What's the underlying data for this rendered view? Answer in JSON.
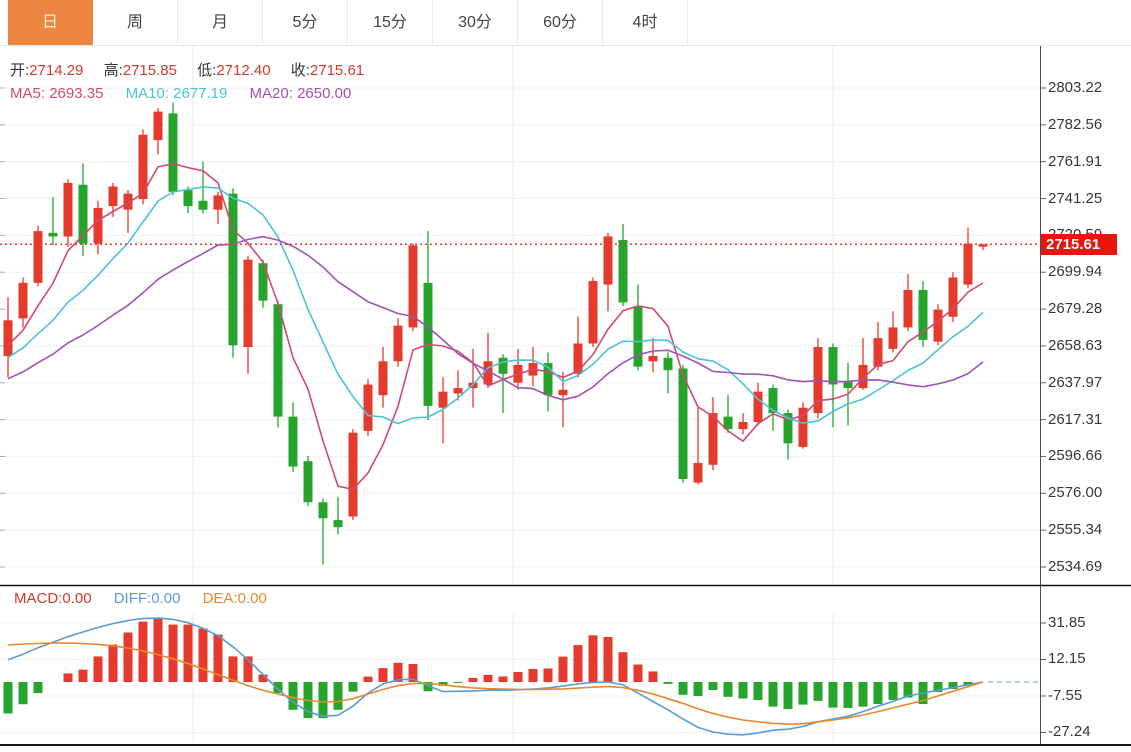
{
  "tabs": {
    "items": [
      {
        "label": "日",
        "active": true
      },
      {
        "label": "周",
        "active": false
      },
      {
        "label": "月",
        "active": false
      },
      {
        "label": "5分",
        "active": false
      },
      {
        "label": "15分",
        "active": false
      },
      {
        "label": "30分",
        "active": false
      },
      {
        "label": "60分",
        "active": false
      },
      {
        "label": "4时",
        "active": false
      }
    ]
  },
  "ohlc": {
    "open_label": "开:",
    "open_value": "2714.29",
    "high_label": "高:",
    "high_value": "2715.85",
    "low_label": "低:",
    "low_value": "2712.40",
    "close_label": "收:",
    "close_value": "2715.61"
  },
  "ma_info": {
    "ma5_label": "MA5:",
    "ma5_value": "2693.35",
    "ma10_label": "MA10:",
    "ma10_value": "2677.19",
    "ma20_label": "MA20:",
    "ma20_value": "2650.00"
  },
  "macd_info": {
    "macd_label": "MACD:",
    "macd_value": "0.00",
    "diff_label": "DIFF:",
    "diff_value": "0.00",
    "dea_label": "DEA:",
    "dea_value": "0.00"
  },
  "current_price_tag": "2715.61",
  "colors": {
    "up": "#e53b2c",
    "down": "#26a42c",
    "ma5": "#d2496f",
    "ma10": "#4cc3d5",
    "ma20": "#9e53b5",
    "diff": "#5b9bd5",
    "dea": "#e78a2e",
    "accent_tab": "#ed8640",
    "tag": "#ea1509",
    "value_red": "#d5382e",
    "axis_text": "#36383d",
    "grid_h": "#eef0f4",
    "grid_v": "#e8ebf1",
    "axis_border": "#4a4e55",
    "separator": "#141414",
    "dotted_line": "#e53b2c",
    "zero_dash": "#8fb0c9"
  },
  "chart_data": {
    "type": "candlestick",
    "title": "",
    "legend": [
      "MA5",
      "MA10",
      "MA20",
      "MACD",
      "DIFF",
      "DEA"
    ],
    "grid": true,
    "price_panel": {
      "y_ticks": [
        2803.22,
        2782.56,
        2761.91,
        2741.25,
        2720.59,
        2699.94,
        2679.28,
        2658.63,
        2637.97,
        2617.31,
        2596.66,
        2576.0,
        2555.34,
        2534.69
      ],
      "y_range": [
        2534.69,
        2803.22
      ],
      "last_close": 2715.61,
      "ma_periods": [
        5,
        10,
        20
      ],
      "ma_last_values": {
        "ma5": 2693.35,
        "ma10": 2677.19,
        "ma20": 2650.0
      },
      "ma_seed_closes": [
        2618,
        2620,
        2623,
        2625,
        2627,
        2629,
        2632,
        2634,
        2636,
        2639,
        2641,
        2643,
        2645,
        2648,
        2650,
        2652,
        2654,
        2657,
        2659
      ],
      "candles_ohlc": [
        [
          2653,
          2686,
          2641,
          2673
        ],
        [
          2674,
          2697,
          2669,
          2694
        ],
        [
          2694,
          2726,
          2692,
          2723
        ],
        [
          2722,
          2742,
          2715,
          2720
        ],
        [
          2720,
          2752,
          2714,
          2750
        ],
        [
          2749,
          2761,
          2709,
          2716
        ],
        [
          2716,
          2740,
          2710,
          2736
        ],
        [
          2737,
          2750,
          2731,
          2748
        ],
        [
          2735,
          2746,
          2722,
          2744
        ],
        [
          2741,
          2780,
          2738,
          2777
        ],
        [
          2774,
          2792,
          2766,
          2790
        ],
        [
          2789,
          2795,
          2743,
          2745
        ],
        [
          2746,
          2748,
          2733,
          2737
        ],
        [
          2740,
          2762,
          2733,
          2735
        ],
        [
          2735,
          2745,
          2727,
          2743
        ],
        [
          2744,
          2747,
          2652,
          2659
        ],
        [
          2658,
          2709,
          2643,
          2707
        ],
        [
          2705,
          2707,
          2680,
          2684
        ],
        [
          2682,
          2684,
          2613,
          2619
        ],
        [
          2619,
          2627,
          2588,
          2591
        ],
        [
          2594,
          2597,
          2569,
          2571
        ],
        [
          2571,
          2573,
          2536,
          2562
        ],
        [
          2561,
          2574,
          2553,
          2557
        ],
        [
          2563,
          2612,
          2561,
          2610
        ],
        [
          2611,
          2640,
          2608,
          2637
        ],
        [
          2631,
          2658,
          2624,
          2650
        ],
        [
          2650,
          2674,
          2647,
          2670
        ],
        [
          2669,
          2716,
          2667,
          2715
        ],
        [
          2694,
          2723,
          2617,
          2625
        ],
        [
          2624,
          2641,
          2604,
          2633
        ],
        [
          2632,
          2645,
          2628,
          2635
        ],
        [
          2635,
          2657,
          2624,
          2638
        ],
        [
          2637,
          2666,
          2635,
          2650
        ],
        [
          2652,
          2654,
          2621,
          2643
        ],
        [
          2638,
          2657,
          2634,
          2648
        ],
        [
          2642,
          2658,
          2636,
          2649
        ],
        [
          2649,
          2655,
          2622,
          2631
        ],
        [
          2631,
          2644,
          2613,
          2634
        ],
        [
          2643,
          2675,
          2641,
          2660
        ],
        [
          2660,
          2697,
          2658,
          2695
        ],
        [
          2693,
          2722,
          2678,
          2720
        ],
        [
          2718,
          2727,
          2681,
          2683
        ],
        [
          2681,
          2693,
          2645,
          2647
        ],
        [
          2650,
          2663,
          2644,
          2653
        ],
        [
          2652,
          2655,
          2632,
          2645
        ],
        [
          2646,
          2648,
          2582,
          2584
        ],
        [
          2582,
          2624,
          2581,
          2593
        ],
        [
          2592,
          2630,
          2589,
          2621
        ],
        [
          2619,
          2631,
          2610,
          2612
        ],
        [
          2612,
          2621,
          2609,
          2616
        ],
        [
          2616,
          2638,
          2614,
          2633
        ],
        [
          2635,
          2637,
          2611,
          2621
        ],
        [
          2621,
          2623,
          2595,
          2604
        ],
        [
          2602,
          2627,
          2601,
          2624
        ],
        [
          2621,
          2663,
          2618,
          2658
        ],
        [
          2658,
          2660,
          2613,
          2637
        ],
        [
          2639,
          2649,
          2614,
          2635
        ],
        [
          2635,
          2663,
          2634,
          2648
        ],
        [
          2647,
          2672,
          2645,
          2663
        ],
        [
          2657,
          2678,
          2655,
          2669
        ],
        [
          2669,
          2699,
          2667,
          2690
        ],
        [
          2690,
          2695,
          2658,
          2662
        ],
        [
          2661,
          2682,
          2659,
          2679
        ],
        [
          2675,
          2700,
          2672,
          2697
        ],
        [
          2693,
          2725,
          2691,
          2716
        ],
        [
          2714.29,
          2715.85,
          2712.4,
          2715.61
        ]
      ]
    },
    "macd_panel": {
      "y_ticks": [
        31.85,
        12.15,
        -7.55,
        -27.24
      ],
      "hist": [
        -17,
        -12,
        -6,
        0,
        4.6,
        6.7,
        13.8,
        20.2,
        26.7,
        32.6,
        34.8,
        31,
        31,
        28.9,
        25.6,
        13.8,
        13.8,
        4,
        -6,
        -15,
        -19.5,
        -19.5,
        -15,
        -5.2,
        2.9,
        7.5,
        10.4,
        9.7,
        -5,
        -2,
        -0.5,
        2.2,
        3.8,
        3,
        5.4,
        7,
        7.3,
        13.7,
        19.9,
        25.2,
        24.3,
        16.1,
        9.4,
        5.7,
        -1,
        -6.9,
        -7.6,
        -4.3,
        -8,
        -8.9,
        -9.7,
        -13.3,
        -14.6,
        -12.2,
        -10.2,
        -13.8,
        -14,
        -13.3,
        -11.9,
        -9.7,
        -8.4,
        -11.9,
        -5.4,
        -3.8,
        -1.9,
        0
      ],
      "diff": [
        12,
        15,
        18.5,
        21.5,
        24.5,
        27,
        29.5,
        31.5,
        33.2,
        34.2,
        34.5,
        33.8,
        32,
        29,
        25,
        19,
        12,
        4,
        -4,
        -11,
        -16,
        -18.5,
        -18,
        -13,
        -6,
        -1,
        1.2,
        1.5,
        -2,
        -5.2,
        -5,
        -4.8,
        -4.5,
        -4.4,
        -4.2,
        -3.8,
        -3.2,
        -2.2,
        -1,
        -0.2,
        0,
        -1.5,
        -6,
        -10.5,
        -15,
        -20,
        -24.5,
        -27,
        -28.2,
        -28.5,
        -27.5,
        -26,
        -25.5,
        -24,
        -21.5,
        -20,
        -18.5,
        -16,
        -13,
        -10.5,
        -7.5,
        -6,
        -4.5,
        -3,
        -1.5,
        0
      ],
      "dea": [
        20,
        20.5,
        20.8,
        21,
        21,
        20.8,
        20.3,
        19.5,
        18.3,
        16.8,
        14.8,
        12.5,
        10,
        7,
        4,
        1,
        -2,
        -4.5,
        -6.5,
        -8.5,
        -10,
        -10.8,
        -10.5,
        -9,
        -6.5,
        -4,
        -2,
        -0.8,
        -0.7,
        -1.5,
        -2.5,
        -3.2,
        -3.6,
        -3.8,
        -4,
        -4,
        -3.9,
        -3.7,
        -3.3,
        -2.8,
        -2.5,
        -3,
        -4.5,
        -6.5,
        -9,
        -11.5,
        -14.5,
        -17,
        -19,
        -20.5,
        -21.5,
        -22.3,
        -22.8,
        -22.5,
        -21.5,
        -20.5,
        -19.3,
        -17.8,
        -16,
        -14,
        -12,
        -10,
        -7.5,
        -5,
        -2.5,
        0
      ]
    }
  }
}
